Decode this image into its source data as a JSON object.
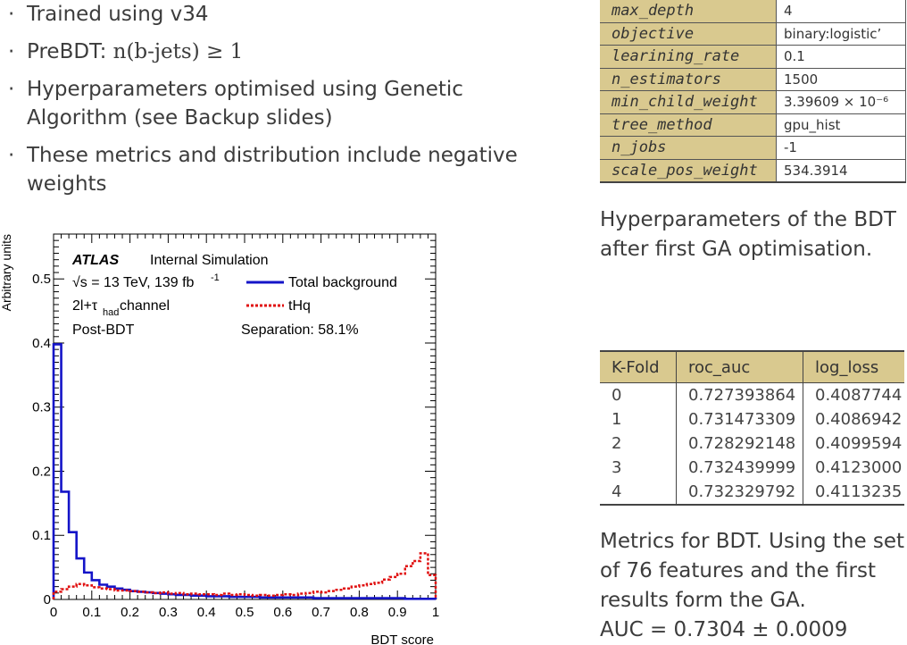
{
  "bullets": [
    {
      "text": "Trained using v34"
    },
    {
      "pre": "PreBDT: ",
      "math": "n(b-jets) ≥ 1"
    },
    {
      "text": "Hyperparameters optimised using Genetic Algorithm (see Backup slides)"
    },
    {
      "text": "These metrics and distribution include negative weights"
    }
  ],
  "hyperparams": {
    "rows": [
      {
        "key": "max_depth",
        "value": "4"
      },
      {
        "key": "objective",
        "value": "binary:logistic’"
      },
      {
        "key": "learining_rate",
        "value": "0.1"
      },
      {
        "key": "n_estimators",
        "value": "1500"
      },
      {
        "key": "min_child_weight",
        "value": "3.39609 × 10⁻⁶"
      },
      {
        "key": "tree_method",
        "value": "gpu_hist"
      },
      {
        "key": "n_jobs",
        "value": "-1"
      },
      {
        "key": "scale_pos_weight",
        "value": "534.3914"
      }
    ],
    "caption_lines": [
      "Hyperparameters of the BDT",
      "after first GA optimisation."
    ]
  },
  "kfold": {
    "headers": [
      "K-Fold",
      "roc_auc",
      "log_loss"
    ],
    "rows": [
      [
        "0",
        "0.727393864",
        "0.4087744"
      ],
      [
        "1",
        "0.731473309",
        "0.4086942"
      ],
      [
        "2",
        "0.728292148",
        "0.4099594"
      ],
      [
        "3",
        "0.732439999",
        "0.4123000"
      ],
      [
        "4",
        "0.732329792",
        "0.4113235"
      ]
    ],
    "caption_lines": [
      "Metrics for BDT. Using the set",
      "of 76 features and the first",
      "results form the GA.",
      "AUC = 0.7304 ± 0.0009"
    ]
  },
  "chart_data": {
    "type": "line",
    "xlabel": "BDT score",
    "ylabel": "Arbitrary units",
    "xlim": [
      0,
      1
    ],
    "ylim": [
      0,
      0.57
    ],
    "xticks": [
      "0",
      "0.1",
      "0.2",
      "0.3",
      "0.4",
      "0.5",
      "0.6",
      "0.7",
      "0.8",
      "0.9",
      "1"
    ],
    "yticks": [
      "0",
      "0.1",
      "0.2",
      "0.3",
      "0.4",
      "0.5"
    ],
    "annotations": {
      "atlas": "ATLAS",
      "status": "Internal  Simulation",
      "energy": "√s = 13 TeV, 139 fb",
      "energy_sup": "-1",
      "channel": "2l+τ",
      "channel_sub": "had",
      "channel_suffix": " channel",
      "stage": "Post-BDT",
      "separation": "Separation: 58.1%"
    },
    "bin_width": 0.02,
    "series": [
      {
        "name": "Total background",
        "color": "#1414c8",
        "style": "solid",
        "values": [
          0.398,
          0.168,
          0.105,
          0.064,
          0.042,
          0.03,
          0.023,
          0.02,
          0.017,
          0.015,
          0.013,
          0.012,
          0.011,
          0.01,
          0.009,
          0.008,
          0.007,
          0.007,
          0.006,
          0.006,
          0.005,
          0.005,
          0.005,
          0.004,
          0.004,
          0.004,
          0.004,
          0.003,
          0.003,
          0.003,
          0.003,
          0.003,
          0.003,
          0.003,
          0.002,
          0.002,
          0.002,
          0.002,
          0.002,
          0.002,
          0.002,
          0.002,
          0.002,
          0.002,
          0.002,
          0.002,
          0.001,
          0.001,
          0.001,
          0.001
        ]
      },
      {
        "name": "tHq",
        "color": "#e01010",
        "style": "dashed",
        "values": [
          0.012,
          0.016,
          0.02,
          0.024,
          0.022,
          0.019,
          0.017,
          0.016,
          0.014,
          0.014,
          0.013,
          0.012,
          0.011,
          0.01,
          0.011,
          0.009,
          0.01,
          0.008,
          0.009,
          0.008,
          0.008,
          0.007,
          0.009,
          0.007,
          0.008,
          0.007,
          0.006,
          0.007,
          0.006,
          0.007,
          0.008,
          0.007,
          0.009,
          0.01,
          0.012,
          0.011,
          0.013,
          0.015,
          0.017,
          0.02,
          0.022,
          0.024,
          0.026,
          0.031,
          0.035,
          0.04,
          0.052,
          0.06,
          0.072,
          0.038
        ]
      }
    ],
    "legend": "top-right"
  }
}
